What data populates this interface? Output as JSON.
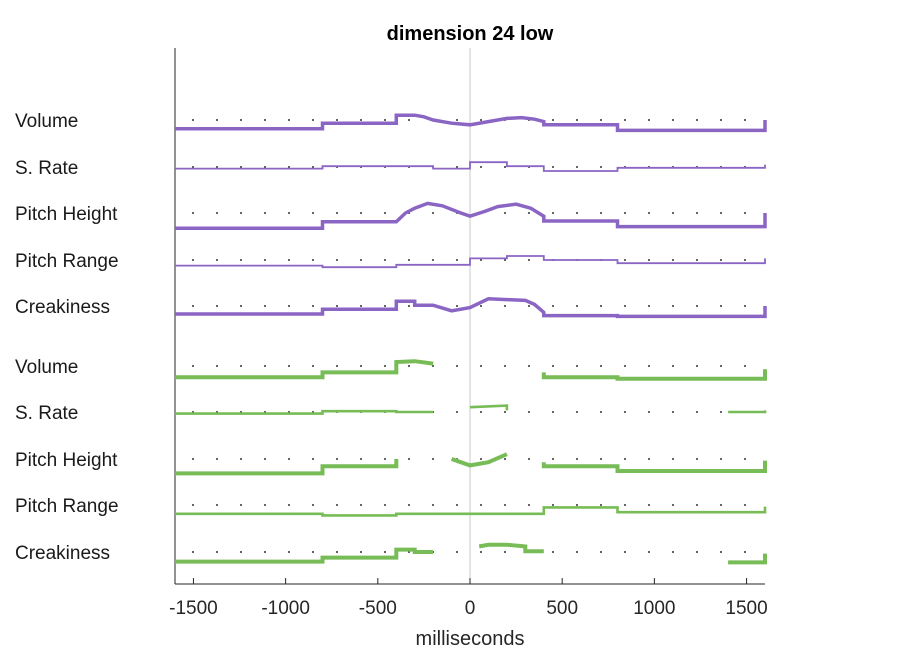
{
  "chart_data": {
    "type": "line",
    "title": "dimension 24 low",
    "xlabel": "milliseconds",
    "xlim": [
      -1600,
      1600
    ],
    "xticks": [
      -1500,
      -1000,
      -500,
      0,
      500,
      1000,
      1500
    ],
    "xtick_labels": [
      "-1500",
      "-1000",
      "-500",
      "0",
      "500",
      "1000",
      "1500"
    ],
    "groups": [
      {
        "color": "#8b65c4",
        "rows": [
          {
            "label": "Volume",
            "weight": 3.5,
            "points": [
              [
                -1600,
                -0.55
              ],
              [
                -800,
                -0.55
              ],
              [
                -800,
                -0.2
              ],
              [
                -400,
                -0.2
              ],
              [
                -400,
                0.3
              ],
              [
                -300,
                0.3
              ],
              [
                -250,
                0.2
              ],
              [
                -200,
                0.0
              ],
              [
                -100,
                -0.2
              ],
              [
                0,
                -0.3
              ],
              [
                100,
                -0.1
              ],
              [
                200,
                0.1
              ],
              [
                280,
                0.15
              ],
              [
                350,
                0.05
              ],
              [
                400,
                -0.1
              ],
              [
                400,
                -0.3
              ],
              [
                800,
                -0.3
              ],
              [
                800,
                -0.65
              ],
              [
                1600,
                -0.65
              ],
              [
                1600,
                0.0
              ]
            ]
          },
          {
            "label": "S. Rate",
            "weight": 1.8,
            "points": [
              [
                -1600,
                -0.1
              ],
              [
                -800,
                -0.1
              ],
              [
                -800,
                0.05
              ],
              [
                -400,
                0.05
              ],
              [
                -400,
                0.05
              ],
              [
                -200,
                0.05
              ],
              [
                -200,
                -0.1
              ],
              [
                0,
                -0.1
              ],
              [
                0,
                0.3
              ],
              [
                200,
                0.3
              ],
              [
                200,
                0.05
              ],
              [
                400,
                0.05
              ],
              [
                400,
                -0.25
              ],
              [
                800,
                -0.25
              ],
              [
                800,
                -0.05
              ],
              [
                1600,
                -0.05
              ],
              [
                1600,
                0.15
              ]
            ]
          },
          {
            "label": "Pitch Height",
            "weight": 3.5,
            "points": [
              [
                -1600,
                -0.95
              ],
              [
                -800,
                -0.95
              ],
              [
                -800,
                -0.55
              ],
              [
                -400,
                -0.55
              ],
              [
                -350,
                0.0
              ],
              [
                -300,
                0.3
              ],
              [
                -230,
                0.6
              ],
              [
                -150,
                0.45
              ],
              [
                -50,
                0.0
              ],
              [
                0,
                -0.2
              ],
              [
                80,
                0.1
              ],
              [
                150,
                0.4
              ],
              [
                250,
                0.55
              ],
              [
                330,
                0.3
              ],
              [
                400,
                -0.2
              ],
              [
                400,
                -0.5
              ],
              [
                800,
                -0.5
              ],
              [
                800,
                -0.85
              ],
              [
                1600,
                -0.85
              ],
              [
                1600,
                0.0
              ]
            ]
          },
          {
            "label": "Pitch Range",
            "weight": 1.8,
            "points": [
              [
                -1600,
                -0.35
              ],
              [
                -800,
                -0.35
              ],
              [
                -800,
                -0.45
              ],
              [
                -400,
                -0.45
              ],
              [
                -400,
                -0.3
              ],
              [
                0,
                -0.3
              ],
              [
                0,
                0.1
              ],
              [
                200,
                0.1
              ],
              [
                200,
                0.25
              ],
              [
                400,
                0.25
              ],
              [
                400,
                0.0
              ],
              [
                800,
                0.0
              ],
              [
                800,
                -0.2
              ],
              [
                1600,
                -0.2
              ],
              [
                1600,
                0.1
              ]
            ]
          },
          {
            "label": "Creakiness",
            "weight": 3.5,
            "points": [
              [
                -1600,
                -0.5
              ],
              [
                -800,
                -0.5
              ],
              [
                -800,
                -0.2
              ],
              [
                -400,
                -0.2
              ],
              [
                -400,
                0.3
              ],
              [
                -300,
                0.3
              ],
              [
                -300,
                0.05
              ],
              [
                -200,
                0.05
              ],
              [
                -100,
                -0.3
              ],
              [
                0,
                -0.1
              ],
              [
                100,
                0.45
              ],
              [
                200,
                0.4
              ],
              [
                300,
                0.35
              ],
              [
                350,
                0.1
              ],
              [
                400,
                -0.4
              ],
              [
                400,
                -0.6
              ],
              [
                800,
                -0.6
              ],
              [
                800,
                -0.65
              ],
              [
                1600,
                -0.65
              ],
              [
                1600,
                0.0
              ]
            ]
          }
        ]
      },
      {
        "color": "#77bc57",
        "rows": [
          {
            "label": "Volume",
            "weight": 4.0,
            "segments": [
              [
                [
                  -1600,
                  -0.7
                ],
                [
                  -800,
                  -0.7
                ],
                [
                  -800,
                  -0.4
                ],
                [
                  -400,
                  -0.4
                ],
                [
                  -400,
                  0.25
                ],
                [
                  -300,
                  0.3
                ],
                [
                  -200,
                  0.15
                ]
              ],
              [
                [
                  400,
                  -0.4
                ],
                [
                  400,
                  -0.7
                ],
                [
                  800,
                  -0.7
                ],
                [
                  800,
                  -0.8
                ],
                [
                  1600,
                  -0.8
                ],
                [
                  1600,
                  -0.2
                ]
              ]
            ]
          },
          {
            "label": "S. Rate",
            "weight": 2.6,
            "segments": [
              [
                [
                  -1600,
                  -0.1
                ],
                [
                  -800,
                  -0.1
                ],
                [
                  -800,
                  0.05
                ],
                [
                  -400,
                  0.05
                ],
                [
                  -400,
                  0.0
                ],
                [
                  -200,
                  0.0
                ]
              ],
              [
                [
                  0,
                  0.3
                ],
                [
                  200,
                  0.4
                ],
                [
                  200,
                  0.1
                ]
              ],
              [
                [
                  1400,
                  0.0
                ],
                [
                  1600,
                  0.0
                ],
                [
                  1600,
                  0.1
                ]
              ]
            ]
          },
          {
            "label": "Pitch Height",
            "weight": 4.0,
            "segments": [
              [
                [
                  -1600,
                  -0.9
                ],
                [
                  -800,
                  -0.9
                ],
                [
                  -800,
                  -0.45
                ],
                [
                  -400,
                  -0.45
                ],
                [
                  -400,
                  0.0
                ]
              ],
              [
                [
                  -100,
                  0.0
                ],
                [
                  -50,
                  -0.2
                ],
                [
                  0,
                  -0.4
                ],
                [
                  100,
                  -0.2
                ],
                [
                  200,
                  0.3
                ]
              ],
              [
                [
                  400,
                  -0.2
                ],
                [
                  400,
                  -0.45
                ],
                [
                  800,
                  -0.45
                ],
                [
                  800,
                  -0.75
                ],
                [
                  1600,
                  -0.75
                ],
                [
                  1600,
                  -0.1
                ]
              ]
            ]
          },
          {
            "label": "Pitch Range",
            "weight": 2.6,
            "points": [
              [
                -1600,
                -0.55
              ],
              [
                -800,
                -0.55
              ],
              [
                -800,
                -0.65
              ],
              [
                -400,
                -0.65
              ],
              [
                -400,
                -0.55
              ],
              [
                0,
                -0.55
              ],
              [
                0,
                -0.55
              ],
              [
                400,
                -0.55
              ],
              [
                400,
                -0.15
              ],
              [
                800,
                -0.15
              ],
              [
                800,
                -0.45
              ],
              [
                1600,
                -0.45
              ],
              [
                1600,
                -0.1
              ]
            ]
          },
          {
            "label": "Creakiness",
            "weight": 4.0,
            "segments": [
              [
                [
                  -1600,
                  -0.6
                ],
                [
                  -800,
                  -0.6
                ],
                [
                  -800,
                  -0.35
                ],
                [
                  -400,
                  -0.35
                ],
                [
                  -400,
                  0.15
                ],
                [
                  -300,
                  0.15
                ],
                [
                  -300,
                  0.0
                ],
                [
                  -200,
                  0.0
                ]
              ],
              [
                [
                  50,
                  0.35
                ],
                [
                  100,
                  0.45
                ],
                [
                  200,
                  0.45
                ],
                [
                  300,
                  0.35
                ],
                [
                  300,
                  0.05
                ],
                [
                  400,
                  0.05
                ]
              ],
              [
                [
                  1400,
                  -0.65
                ],
                [
                  1600,
                  -0.65
                ],
                [
                  1600,
                  -0.1
                ]
              ]
            ]
          }
        ]
      }
    ]
  }
}
